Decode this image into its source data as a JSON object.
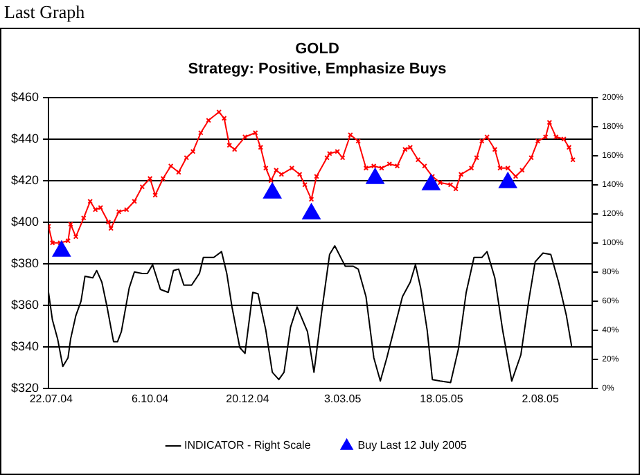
{
  "chart_data": {
    "type": "line",
    "title": "GOLD",
    "subtitle": "Strategy: Positive, Emphasize Buys",
    "annotations": [
      "Last Graph"
    ],
    "xlim": [
      "2004-07-20",
      "2005-09-11"
    ],
    "xticks": [
      {
        "value": "2004-07-22",
        "label": "22.07.04"
      },
      {
        "value": "2004-10-06",
        "label": "6.10.04"
      },
      {
        "value": "2004-12-20",
        "label": "20.12.04"
      },
      {
        "value": "2005-03-03",
        "label": "3.03.05"
      },
      {
        "value": "2005-05-18",
        "label": "18.05.05"
      },
      {
        "value": "2005-08-02",
        "label": "2.08.05"
      }
    ],
    "ylim": [
      320,
      460
    ],
    "yticks": [
      {
        "value": 320,
        "label": "$320"
      },
      {
        "value": 340,
        "label": "$340"
      },
      {
        "value": 360,
        "label": "$360"
      },
      {
        "value": 380,
        "label": "$380"
      },
      {
        "value": 400,
        "label": "$400"
      },
      {
        "value": 420,
        "label": "$420"
      },
      {
        "value": 440,
        "label": "$440"
      },
      {
        "value": 460,
        "label": "$460"
      }
    ],
    "y2lim": [
      0,
      200
    ],
    "y2ticks": [
      {
        "value": 0,
        "label": "0%"
      },
      {
        "value": 20,
        "label": "20%"
      },
      {
        "value": 40,
        "label": "40%"
      },
      {
        "value": 60,
        "label": "60%"
      },
      {
        "value": 80,
        "label": "80%"
      },
      {
        "value": 100,
        "label": "100%"
      },
      {
        "value": 120,
        "label": "120%"
      },
      {
        "value": 140,
        "label": "140%"
      },
      {
        "value": 160,
        "label": "160%"
      },
      {
        "value": 180,
        "label": "180%"
      },
      {
        "value": 200,
        "label": "200%"
      }
    ],
    "grid": "y",
    "legend": "bottom",
    "series": [
      {
        "color": "#ff0000",
        "marker": "cross",
        "x": [
          "2004-07-20",
          "2004-07-23",
          "2004-07-29",
          "2004-08-04",
          "2004-08-06",
          "2004-08-10",
          "2004-08-16",
          "2004-08-21",
          "2004-08-25",
          "2004-08-29",
          "2004-09-04",
          "2004-09-06",
          "2004-09-12",
          "2004-09-18",
          "2004-09-24",
          "2004-09-30",
          "2004-10-06",
          "2004-10-10",
          "2004-10-16",
          "2004-10-22",
          "2004-10-28",
          "2004-11-03",
          "2004-11-08",
          "2004-11-14",
          "2004-11-20",
          "2004-11-28",
          "2004-12-02",
          "2004-12-06",
          "2004-12-10",
          "2004-12-18",
          "2004-12-26",
          "2004-12-30",
          "2005-01-03",
          "2005-01-07",
          "2005-01-11",
          "2005-01-15",
          "2005-01-23",
          "2005-01-29",
          "2005-02-02",
          "2005-02-07",
          "2005-02-11",
          "2005-02-19",
          "2005-02-21",
          "2005-02-27",
          "2005-03-03",
          "2005-03-09",
          "2005-03-15",
          "2005-03-21",
          "2005-03-27",
          "2005-04-02",
          "2005-04-08",
          "2005-04-14",
          "2005-04-20",
          "2005-04-24",
          "2005-04-30",
          "2005-05-05",
          "2005-05-11",
          "2005-05-17",
          "2005-05-25",
          "2005-05-29",
          "2005-06-02",
          "2005-06-10",
          "2005-06-14",
          "2005-06-18",
          "2005-06-22",
          "2005-06-28",
          "2005-07-02",
          "2005-07-08",
          "2005-07-14",
          "2005-07-19",
          "2005-07-26",
          "2005-07-31",
          "2005-08-06",
          "2005-08-09",
          "2005-08-14",
          "2005-08-20",
          "2005-08-24",
          "2005-08-27"
        ],
        "values": [
          398,
          390,
          390,
          391,
          399,
          393,
          402,
          410,
          406,
          407,
          400,
          397,
          405,
          406,
          410,
          417,
          421,
          413,
          421,
          427,
          424,
          431,
          434,
          443,
          449,
          453,
          450,
          437,
          435,
          441,
          443,
          436,
          426,
          420,
          425,
          423,
          426,
          423,
          418,
          411,
          422,
          431,
          433,
          434,
          431,
          442,
          439,
          426,
          427,
          426,
          428,
          427,
          435,
          436,
          430,
          427,
          422,
          419,
          418,
          416,
          423,
          426,
          431,
          439,
          441,
          435,
          426,
          426,
          422,
          425,
          431,
          439,
          441,
          448,
          441,
          440,
          436,
          430
        ]
      },
      {
        "name": "INDICATOR - Right Scale",
        "color": "#000000",
        "marker": "none",
        "axis": "y2",
        "x": [
          "2004-07-20",
          "2004-07-23",
          "2004-07-27",
          "2004-07-31",
          "2004-08-04",
          "2004-08-06",
          "2004-08-10",
          "2004-08-14",
          "2004-08-17",
          "2004-08-23",
          "2004-08-26",
          "2004-08-30",
          "2004-09-03",
          "2004-09-08",
          "2004-09-11",
          "2004-09-14",
          "2004-09-20",
          "2004-09-24",
          "2004-09-30",
          "2004-10-04",
          "2004-10-08",
          "2004-10-14",
          "2004-10-20",
          "2004-10-24",
          "2004-10-28",
          "2004-11-01",
          "2004-11-07",
          "2004-11-13",
          "2004-11-16",
          "2004-11-24",
          "2004-11-30",
          "2004-12-04",
          "2004-12-08",
          "2004-12-14",
          "2004-12-18",
          "2004-12-24",
          "2004-12-28",
          "2005-01-03",
          "2005-01-08",
          "2005-01-13",
          "2005-01-17",
          "2005-01-22",
          "2005-01-27",
          "2005-02-04",
          "2005-02-09",
          "2005-02-15",
          "2005-02-21",
          "2005-02-25",
          "2005-03-05",
          "2005-03-11",
          "2005-03-15",
          "2005-03-21",
          "2005-03-27",
          "2005-04-01",
          "2005-04-06",
          "2005-04-12",
          "2005-04-18",
          "2005-04-24",
          "2005-04-28",
          "2005-05-02",
          "2005-05-07",
          "2005-05-11",
          "2005-05-17",
          "2005-05-25",
          "2005-05-31",
          "2005-06-06",
          "2005-06-12",
          "2005-06-18",
          "2005-06-22",
          "2005-06-28",
          "2005-07-04",
          "2005-07-11",
          "2005-07-18",
          "2005-07-24",
          "2005-07-29",
          "2005-08-04",
          "2005-08-10",
          "2005-08-16",
          "2005-08-22",
          "2005-08-26"
        ],
        "values": [
          66,
          47,
          34,
          15,
          21,
          34,
          50,
          60,
          77,
          76,
          81,
          73,
          56,
          32,
          32,
          39,
          69,
          80,
          79,
          79,
          85,
          68,
          66,
          81,
          82,
          71,
          71,
          79,
          90,
          90,
          94,
          79,
          56,
          28,
          24,
          66,
          65,
          40,
          11,
          6,
          11,
          42,
          56,
          39,
          11,
          53,
          92,
          98,
          84,
          84,
          82,
          63,
          21,
          5,
          21,
          42,
          63,
          73,
          85,
          69,
          40,
          6,
          5,
          4,
          27,
          66,
          90,
          90,
          94,
          76,
          40,
          5,
          23,
          60,
          87,
          93,
          92,
          73,
          50,
          29
        ]
      },
      {
        "name": "Buy Last 12 July 2005",
        "type": "scatter",
        "color": "#0000ff",
        "marker": "triangle",
        "x": [
          "2004-07-30",
          "2005-01-08",
          "2005-02-07",
          "2005-03-28",
          "2005-05-10",
          "2005-07-08"
        ],
        "values": [
          386,
          414,
          404,
          421,
          418,
          419
        ]
      }
    ]
  }
}
